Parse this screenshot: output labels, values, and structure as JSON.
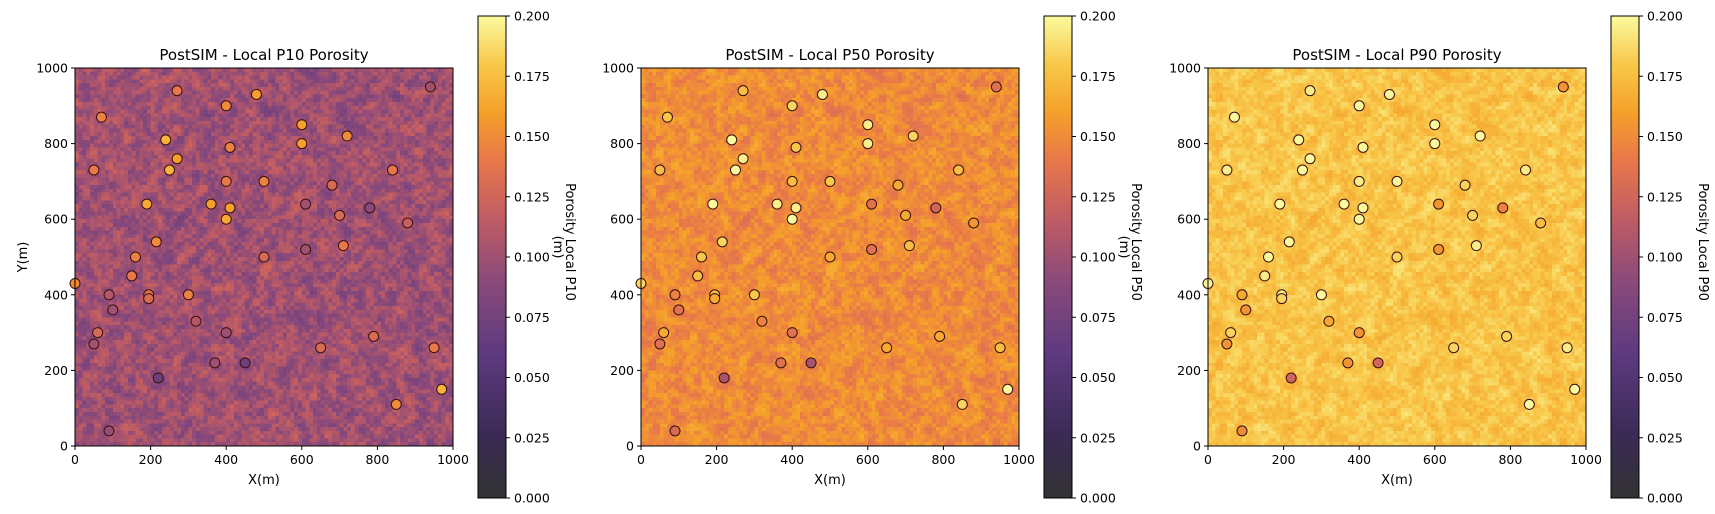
{
  "chart_data": [
    {
      "type": "heatmap",
      "title": "PostSIM - Local P10 Porosity",
      "xlabel": "X(m)",
      "ylabel": "Y(m)",
      "xlim": [
        0,
        1000
      ],
      "ylim": [
        0,
        1000
      ],
      "xticks": [
        "0",
        "200",
        "400",
        "600",
        "800",
        "1000"
      ],
      "yticks": [
        "0",
        "200",
        "400",
        "600",
        "800",
        "1000"
      ],
      "colorbar_label": "Porosity Local P10",
      "colorbar_overlap_label": "(m)",
      "colorbar_ticks": [
        "0.000",
        "0.025",
        "0.050",
        "0.075",
        "0.100",
        "0.125",
        "0.150",
        "0.175",
        "0.200"
      ],
      "clim": [
        0,
        0.2
      ],
      "colormap": "inferno",
      "field_mean": 0.1,
      "field_spread": 0.022,
      "well_points": [
        {
          "x": 0,
          "y": 430,
          "v": 0.15
        },
        {
          "x": 50,
          "y": 730,
          "v": 0.14
        },
        {
          "x": 70,
          "y": 870,
          "v": 0.145
        },
        {
          "x": 90,
          "y": 400,
          "v": 0.11
        },
        {
          "x": 100,
          "y": 360,
          "v": 0.1
        },
        {
          "x": 60,
          "y": 300,
          "v": 0.13
        },
        {
          "x": 50,
          "y": 270,
          "v": 0.1
        },
        {
          "x": 90,
          "y": 40,
          "v": 0.095
        },
        {
          "x": 150,
          "y": 450,
          "v": 0.14
        },
        {
          "x": 160,
          "y": 500,
          "v": 0.145
        },
        {
          "x": 190,
          "y": 640,
          "v": 0.165
        },
        {
          "x": 195,
          "y": 400,
          "v": 0.14
        },
        {
          "x": 195,
          "y": 390,
          "v": 0.13
        },
        {
          "x": 215,
          "y": 540,
          "v": 0.15
        },
        {
          "x": 220,
          "y": 180,
          "v": 0.07
        },
        {
          "x": 240,
          "y": 810,
          "v": 0.17
        },
        {
          "x": 250,
          "y": 730,
          "v": 0.17
        },
        {
          "x": 270,
          "y": 760,
          "v": 0.16
        },
        {
          "x": 270,
          "y": 940,
          "v": 0.14
        },
        {
          "x": 300,
          "y": 400,
          "v": 0.145
        },
        {
          "x": 320,
          "y": 330,
          "v": 0.11
        },
        {
          "x": 360,
          "y": 640,
          "v": 0.16
        },
        {
          "x": 370,
          "y": 220,
          "v": 0.1
        },
        {
          "x": 400,
          "y": 300,
          "v": 0.1
        },
        {
          "x": 400,
          "y": 700,
          "v": 0.14
        },
        {
          "x": 400,
          "y": 600,
          "v": 0.165
        },
        {
          "x": 400,
          "y": 900,
          "v": 0.15
        },
        {
          "x": 410,
          "y": 790,
          "v": 0.145
        },
        {
          "x": 410,
          "y": 630,
          "v": 0.16
        },
        {
          "x": 450,
          "y": 220,
          "v": 0.07
        },
        {
          "x": 480,
          "y": 930,
          "v": 0.16
        },
        {
          "x": 500,
          "y": 700,
          "v": 0.145
        },
        {
          "x": 500,
          "y": 500,
          "v": 0.13
        },
        {
          "x": 600,
          "y": 850,
          "v": 0.16
        },
        {
          "x": 600,
          "y": 800,
          "v": 0.16
        },
        {
          "x": 610,
          "y": 640,
          "v": 0.1
        },
        {
          "x": 610,
          "y": 520,
          "v": 0.1
        },
        {
          "x": 650,
          "y": 260,
          "v": 0.13
        },
        {
          "x": 680,
          "y": 690,
          "v": 0.13
        },
        {
          "x": 700,
          "y": 610,
          "v": 0.13
        },
        {
          "x": 710,
          "y": 530,
          "v": 0.14
        },
        {
          "x": 720,
          "y": 820,
          "v": 0.15
        },
        {
          "x": 780,
          "y": 630,
          "v": 0.09
        },
        {
          "x": 790,
          "y": 290,
          "v": 0.13
        },
        {
          "x": 840,
          "y": 730,
          "v": 0.14
        },
        {
          "x": 850,
          "y": 110,
          "v": 0.15
        },
        {
          "x": 880,
          "y": 590,
          "v": 0.12
        },
        {
          "x": 940,
          "y": 950,
          "v": 0.1
        },
        {
          "x": 950,
          "y": 260,
          "v": 0.14
        },
        {
          "x": 970,
          "y": 150,
          "v": 0.17
        }
      ]
    },
    {
      "type": "heatmap",
      "title": "PostSIM - Local P50 Porosity",
      "xlabel": "X(m)",
      "ylabel": "",
      "xlim": [
        0,
        1000
      ],
      "ylim": [
        0,
        1000
      ],
      "xticks": [
        "0",
        "200",
        "400",
        "600",
        "800",
        "1000"
      ],
      "yticks": [
        "0",
        "200",
        "400",
        "600",
        "800",
        "1000"
      ],
      "colorbar_label": "Porosity Local P50",
      "colorbar_overlap_label": "(m)",
      "colorbar_ticks": [
        "0.000",
        "0.025",
        "0.050",
        "0.075",
        "0.100",
        "0.125",
        "0.150",
        "0.175",
        "0.200"
      ],
      "clim": [
        0,
        0.2
      ],
      "colormap": "inferno",
      "field_mean": 0.15,
      "field_spread": 0.015
    },
    {
      "type": "heatmap",
      "title": "PostSIM - Local P90 Porosity",
      "xlabel": "X(m)",
      "ylabel": "",
      "xlim": [
        0,
        1000
      ],
      "ylim": [
        0,
        1000
      ],
      "xticks": [
        "0",
        "200",
        "400",
        "600",
        "800",
        "1000"
      ],
      "yticks": [
        "0",
        "200",
        "400",
        "600",
        "800",
        "1000"
      ],
      "colorbar_label": "Porosity Local P90",
      "colorbar_overlap_label": "",
      "colorbar_ticks": [
        "0.000",
        "0.025",
        "0.050",
        "0.075",
        "0.100",
        "0.125",
        "0.150",
        "0.175",
        "0.200"
      ],
      "clim": [
        0,
        0.2
      ],
      "colormap": "inferno",
      "field_mean": 0.178,
      "field_spread": 0.012
    }
  ]
}
